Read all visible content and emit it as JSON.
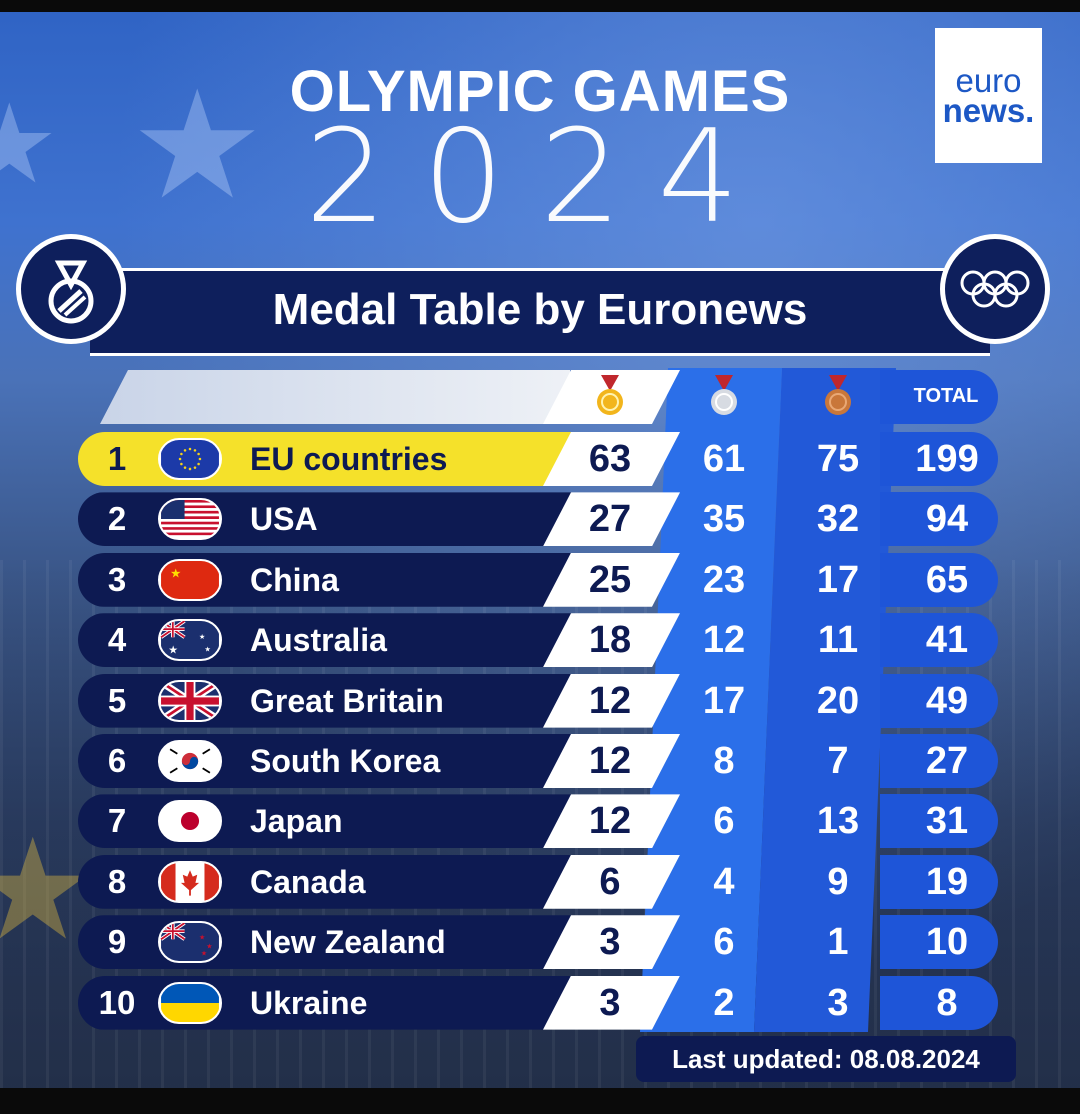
{
  "header": {
    "headline": "OLYMPIC GAMES",
    "year": "2024",
    "logo": {
      "line1": "euro",
      "line2": "news."
    },
    "banner_title": "Medal Table by Euronews",
    "left_icon": "medal-icon",
    "right_icon": "olympic-rings-icon"
  },
  "table": {
    "columns": [
      "gold-medal-icon",
      "silver-medal-icon",
      "bronze-medal-icon",
      "TOTAL"
    ],
    "total_label": "TOTAL",
    "rows": [
      {
        "rank": "1",
        "flag": "eu-flag-icon",
        "country": "EU countries",
        "gold": "63",
        "silver": "61",
        "bronze": "75",
        "total": "199"
      },
      {
        "rank": "2",
        "flag": "usa-flag-icon",
        "country": "USA",
        "gold": "27",
        "silver": "35",
        "bronze": "32",
        "total": "94"
      },
      {
        "rank": "3",
        "flag": "china-flag-icon",
        "country": "China",
        "gold": "25",
        "silver": "23",
        "bronze": "17",
        "total": "65"
      },
      {
        "rank": "4",
        "flag": "australia-flag-icon",
        "country": "Australia",
        "gold": "18",
        "silver": "12",
        "bronze": "11",
        "total": "41"
      },
      {
        "rank": "5",
        "flag": "great-britain-flag-icon",
        "country": "Great Britain",
        "gold": "12",
        "silver": "17",
        "bronze": "20",
        "total": "49"
      },
      {
        "rank": "6",
        "flag": "south-korea-flag-icon",
        "country": "South Korea",
        "gold": "12",
        "silver": "8",
        "bronze": "7",
        "total": "27"
      },
      {
        "rank": "7",
        "flag": "japan-flag-icon",
        "country": "Japan",
        "gold": "12",
        "silver": "6",
        "bronze": "13",
        "total": "31"
      },
      {
        "rank": "8",
        "flag": "canada-flag-icon",
        "country": "Canada",
        "gold": "6",
        "silver": "4",
        "bronze": "9",
        "total": "19"
      },
      {
        "rank": "9",
        "flag": "new-zealand-flag-icon",
        "country": "New Zealand",
        "gold": "3",
        "silver": "6",
        "bronze": "1",
        "total": "10"
      },
      {
        "rank": "10",
        "flag": "ukraine-flag-icon",
        "country": "Ukraine",
        "gold": "3",
        "silver": "2",
        "bronze": "3",
        "total": "8"
      }
    ]
  },
  "footer": {
    "last_updated": "Last updated: 08.08.2024"
  },
  "colors": {
    "navy": "#0d1a52",
    "highlight": "#f5e12a",
    "silver_col": "#2a6ee8",
    "bronze_col": "#2258d6",
    "total_col": "#1e55d8",
    "gold": "#f2b51c",
    "silver": "#d7dbe2",
    "bronze": "#c9773a"
  }
}
